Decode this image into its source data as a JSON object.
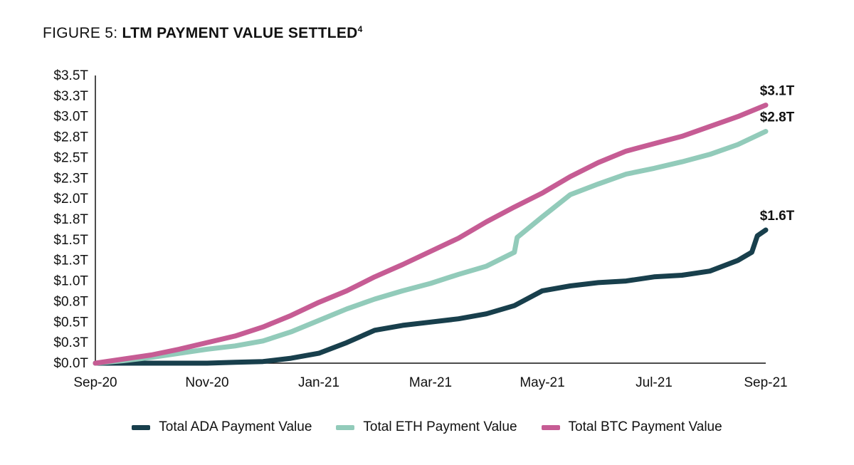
{
  "figure": {
    "prefix": "FIGURE 5: ",
    "title": "LTM PAYMENT VALUE SETTLED",
    "footnote": "4"
  },
  "chart_data": {
    "type": "line",
    "title": "LTM PAYMENT VALUE SETTLED",
    "xlabel": "",
    "ylabel": "",
    "x_tick_labels": [
      "Sep-20",
      "Nov-20",
      "Jan-21",
      "Mar-21",
      "May-21",
      "Jul-21",
      "Sep-21"
    ],
    "y_tick_labels": [
      "$0.0T",
      "$0.3T",
      "$0.5T",
      "$0.8T",
      "$1.0T",
      "$1.3T",
      "$1.5T",
      "$1.8T",
      "$2.0T",
      "$2.3T",
      "$2.5T",
      "$2.8T",
      "$3.0T",
      "$3.3T",
      "$3.5T"
    ],
    "ylim": [
      0,
      3.5
    ],
    "y_tick_step": 0.25,
    "x_unit": "months since Sep-20",
    "xlim": [
      0,
      12
    ],
    "grid": false,
    "legend_position": "bottom",
    "series": [
      {
        "name": "Total ADA Payment Value",
        "color": "#183f4c",
        "end_label": "$1.6T",
        "x": [
          0,
          1,
          2,
          2.5,
          3,
          3.5,
          4,
          4.5,
          5,
          5.5,
          6,
          6.5,
          7,
          7.5,
          8,
          8.5,
          9,
          9.5,
          10,
          10.5,
          11,
          11.5,
          11.75,
          11.85,
          12
        ],
        "values": [
          0,
          0.0,
          0.0,
          0.01,
          0.02,
          0.06,
          0.12,
          0.25,
          0.4,
          0.46,
          0.5,
          0.54,
          0.6,
          0.7,
          0.88,
          0.94,
          0.98,
          1.0,
          1.05,
          1.07,
          1.12,
          1.25,
          1.35,
          1.55,
          1.62
        ]
      },
      {
        "name": "Total ETH Payment Value",
        "color": "#92cbba",
        "end_label": "$2.8T",
        "x": [
          0,
          0.5,
          1,
          1.5,
          2,
          2.5,
          3,
          3.5,
          4,
          4.5,
          5,
          5.5,
          6,
          6.5,
          7,
          7.5,
          7.55,
          8,
          8.5,
          9,
          9.5,
          10,
          10.5,
          11,
          11.5,
          12
        ],
        "values": [
          0,
          0.03,
          0.07,
          0.12,
          0.17,
          0.21,
          0.27,
          0.38,
          0.52,
          0.66,
          0.78,
          0.88,
          0.97,
          1.08,
          1.18,
          1.35,
          1.53,
          1.78,
          2.05,
          2.18,
          2.3,
          2.37,
          2.45,
          2.54,
          2.66,
          2.82
        ]
      },
      {
        "name": "Total BTC Payment Value",
        "color": "#c65c94",
        "end_label": "$3.1T",
        "x": [
          0,
          0.5,
          1,
          1.5,
          2,
          2.5,
          3,
          3.5,
          4,
          4.5,
          5,
          5.5,
          6,
          6.5,
          7,
          7.5,
          8,
          8.5,
          9,
          9.5,
          10,
          10.5,
          11,
          11.5,
          12
        ],
        "values": [
          0,
          0.05,
          0.1,
          0.17,
          0.25,
          0.33,
          0.44,
          0.58,
          0.74,
          0.88,
          1.05,
          1.2,
          1.36,
          1.52,
          1.72,
          1.9,
          2.07,
          2.27,
          2.44,
          2.58,
          2.67,
          2.76,
          2.88,
          3.0,
          3.14
        ]
      }
    ]
  }
}
